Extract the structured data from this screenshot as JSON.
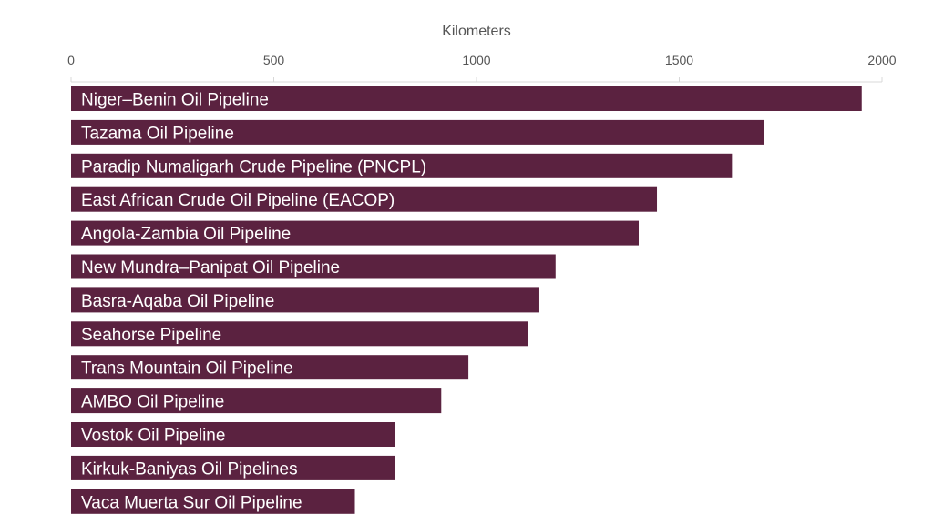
{
  "chart_data": {
    "type": "bar",
    "orientation": "horizontal",
    "xlabel": "Kilometers",
    "xlim": [
      0,
      2000
    ],
    "xticks": [
      0,
      500,
      1000,
      1500,
      2000
    ],
    "xtick_labels": [
      "0",
      "500",
      "1000",
      "1500",
      "2000"
    ],
    "axis_position": "top",
    "grid": false,
    "bar_color": "#5b2240",
    "categories": [
      "Niger–Benin Oil Pipeline",
      "Tazama Oil Pipeline",
      "Paradip Numaligarh Crude Pipeline (PNCPL)",
      "East African Crude Oil Pipeline (EACOP)",
      "Angola-Zambia Oil Pipeline",
      "New Mundra–Panipat Oil Pipeline",
      "Basra-Aqaba Oil Pipeline",
      "Seahorse Pipeline",
      "Trans Mountain Oil Pipeline",
      "AMBO Oil Pipeline",
      "Vostok Oil Pipeline",
      "Kirkuk-Baniyas Oil Pipelines",
      "Vaca Muerta Sur Oil Pipeline"
    ],
    "values": [
      1950,
      1710,
      1630,
      1445,
      1400,
      1195,
      1155,
      1128,
      980,
      913,
      800,
      800,
      700
    ]
  }
}
